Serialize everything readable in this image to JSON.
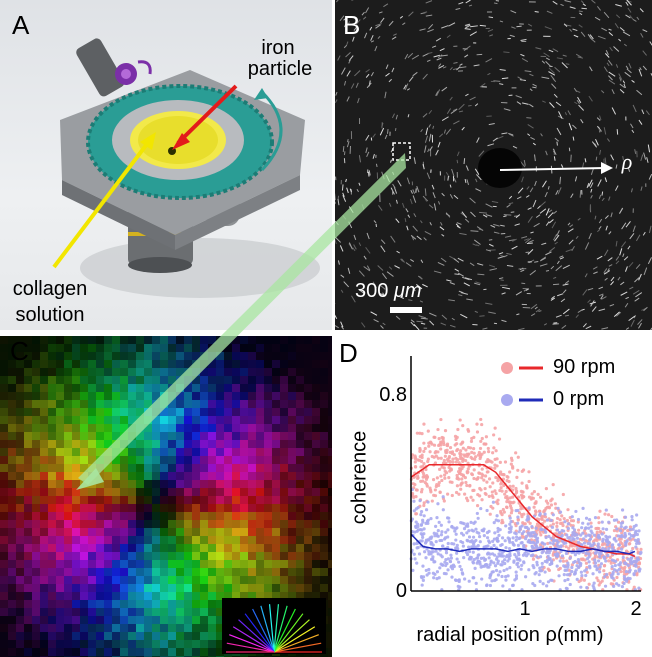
{
  "panels": {
    "a": {
      "label": "A",
      "iron_label_1": "iron",
      "iron_label_2": "particle",
      "collagen_label_1": "collagen",
      "collagen_label_2": "solution"
    },
    "b": {
      "label": "B",
      "rho": "ρ",
      "scalebar_value": "300 ",
      "scalebar_unit": "μm"
    },
    "c": {
      "label": "C"
    },
    "d": {
      "label": "D"
    }
  },
  "colors": {
    "rpm90_line": "#e8282b",
    "rpm90_points": "#f5a3a5",
    "rpm0_line": "#1f2bb8",
    "rpm0_points": "#a9aaf0",
    "gear": "#2a9d95",
    "yellow": "#f2e600",
    "red_arrow": "#e31b1b"
  },
  "chart_data": {
    "type": "scatter",
    "xlabel": "radial position ρ(mm)",
    "ylabel": "coherence",
    "xlim": [
      0.1,
      2.0
    ],
    "ylim": [
      0,
      0.95
    ],
    "xticks": [
      "1",
      "2"
    ],
    "yticks": [
      "0",
      "0.8"
    ],
    "legend_position": "top-right",
    "series": [
      {
        "name": "90 rpm",
        "x": [
          0.1,
          0.25,
          0.4,
          0.55,
          0.7,
          0.8,
          0.9,
          1.0,
          1.1,
          1.2,
          1.3,
          1.4,
          1.5,
          1.6,
          1.7,
          1.8,
          1.9,
          1.95
        ],
        "y": [
          0.46,
          0.51,
          0.51,
          0.51,
          0.51,
          0.48,
          0.42,
          0.36,
          0.3,
          0.26,
          0.22,
          0.2,
          0.18,
          0.17,
          0.16,
          0.15,
          0.15,
          0.14
        ]
      },
      {
        "name": "0 rpm",
        "x": [
          0.1,
          0.2,
          0.3,
          0.4,
          0.5,
          0.6,
          0.7,
          0.8,
          0.9,
          1.0,
          1.1,
          1.2,
          1.3,
          1.4,
          1.5,
          1.6,
          1.7,
          1.8,
          1.9,
          1.95
        ],
        "y": [
          0.23,
          0.18,
          0.17,
          0.17,
          0.16,
          0.17,
          0.17,
          0.17,
          0.16,
          0.17,
          0.16,
          0.17,
          0.17,
          0.16,
          0.16,
          0.17,
          0.16,
          0.16,
          0.15,
          0.16
        ]
      }
    ]
  }
}
